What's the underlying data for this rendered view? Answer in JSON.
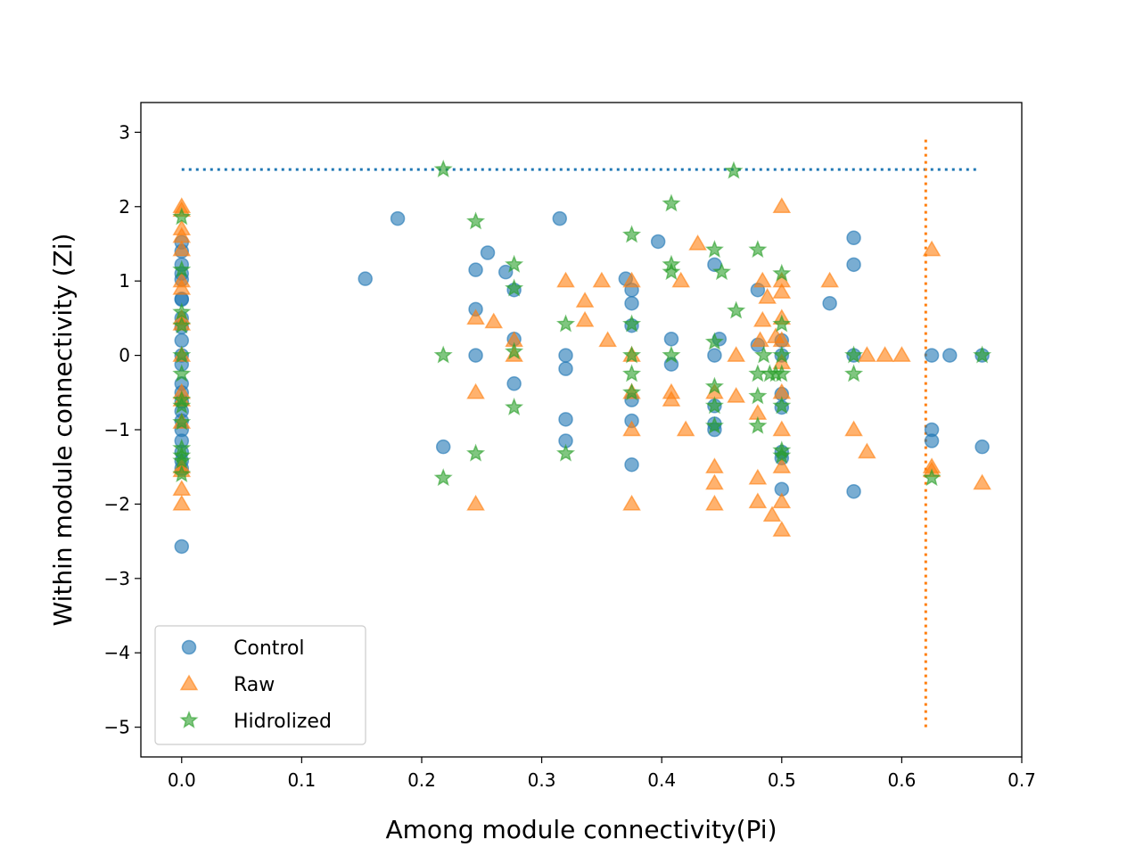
{
  "chart_data": {
    "type": "scatter",
    "title": "",
    "xlabel": "Among module connectivity(Pi)",
    "ylabel": "Within module connectivity (Zi)",
    "xlim": [
      -0.034,
      0.7
    ],
    "ylim": [
      -5.4,
      3.4
    ],
    "xticks": [
      0.0,
      0.1,
      0.2,
      0.3,
      0.4,
      0.5,
      0.6,
      0.7
    ],
    "xtick_labels": [
      "0.0",
      "0.1",
      "0.2",
      "0.3",
      "0.4",
      "0.5",
      "0.6",
      "0.7"
    ],
    "yticks": [
      3,
      2,
      1,
      0,
      -1,
      -2,
      -3,
      -4,
      -5
    ],
    "ytick_labels": [
      "3",
      "2",
      "1",
      "0",
      "−1",
      "−2",
      "−3",
      "−4",
      "−5"
    ],
    "grid": false,
    "legend_position": "lower-left",
    "reference_lines": [
      {
        "orientation": "horizontal",
        "value": 2.5,
        "from": 0.0,
        "to": 0.664,
        "color": "#1f77b4",
        "style": "dotted"
      },
      {
        "orientation": "vertical",
        "value": 0.62,
        "from": -5.0,
        "to": 2.95,
        "color": "#ff7f0e",
        "style": "dotted"
      }
    ],
    "series": [
      {
        "name": "Control",
        "marker": "circle",
        "color": "#1f77b4",
        "points": [
          [
            0,
            1.52
          ],
          [
            0,
            1.4
          ],
          [
            0,
            1.22
          ],
          [
            0,
            1.1
          ],
          [
            0,
            1.02
          ],
          [
            0,
            0.76
          ],
          [
            0,
            0.75
          ],
          [
            0,
            0.5
          ],
          [
            0,
            0.38
          ],
          [
            0,
            0.2
          ],
          [
            0,
            0.0
          ],
          [
            0,
            -0.12
          ],
          [
            0,
            -0.38
          ],
          [
            0,
            -0.5
          ],
          [
            0,
            -0.62
          ],
          [
            0,
            -0.75
          ],
          [
            0,
            -0.88
          ],
          [
            0,
            -1.0
          ],
          [
            0,
            -1.15
          ],
          [
            0,
            -1.3
          ],
          [
            0,
            -1.42
          ],
          [
            0,
            -1.52
          ],
          [
            0,
            -2.57
          ],
          [
            0.153,
            1.03
          ],
          [
            0.18,
            1.84
          ],
          [
            0.218,
            -1.23
          ],
          [
            0.245,
            1.15
          ],
          [
            0.245,
            0.62
          ],
          [
            0.245,
            0.0
          ],
          [
            0.255,
            1.38
          ],
          [
            0.27,
            1.12
          ],
          [
            0.277,
            0.88
          ],
          [
            0.277,
            0.22
          ],
          [
            0.277,
            -0.38
          ],
          [
            0.315,
            1.84
          ],
          [
            0.32,
            0.0
          ],
          [
            0.32,
            -0.18
          ],
          [
            0.32,
            -0.86
          ],
          [
            0.32,
            -1.15
          ],
          [
            0.37,
            1.03
          ],
          [
            0.375,
            0.88
          ],
          [
            0.375,
            0.7
          ],
          [
            0.375,
            0.4
          ],
          [
            0.375,
            -0.6
          ],
          [
            0.375,
            -0.88
          ],
          [
            0.375,
            -1.47
          ],
          [
            0.397,
            1.53
          ],
          [
            0.408,
            0.22
          ],
          [
            0.408,
            -0.12
          ],
          [
            0.444,
            1.22
          ],
          [
            0.444,
            0.0
          ],
          [
            0.444,
            -0.68
          ],
          [
            0.444,
            -0.92
          ],
          [
            0.444,
            -1.0
          ],
          [
            0.448,
            0.22
          ],
          [
            0.48,
            0.88
          ],
          [
            0.48,
            0.14
          ],
          [
            0.5,
            0.2
          ],
          [
            0.5,
            0.0
          ],
          [
            0.5,
            -0.52
          ],
          [
            0.5,
            -0.7
          ],
          [
            0.5,
            -1.3
          ],
          [
            0.5,
            -1.38
          ],
          [
            0.5,
            -1.8
          ],
          [
            0.54,
            0.7
          ],
          [
            0.56,
            1.58
          ],
          [
            0.56,
            1.22
          ],
          [
            0.56,
            0.0
          ],
          [
            0.56,
            -1.83
          ],
          [
            0.625,
            0.0
          ],
          [
            0.625,
            -1.0
          ],
          [
            0.625,
            -1.15
          ],
          [
            0.64,
            0.0
          ],
          [
            0.667,
            0.0
          ],
          [
            0.667,
            -1.23
          ]
        ]
      },
      {
        "name": "Raw",
        "marker": "triangle",
        "color": "#ff7f0e",
        "points": [
          [
            0,
            2.0
          ],
          [
            0,
            1.95
          ],
          [
            0,
            1.7
          ],
          [
            0,
            1.6
          ],
          [
            0,
            1.42
          ],
          [
            0,
            1.0
          ],
          [
            0,
            0.9
          ],
          [
            0,
            0.5
          ],
          [
            0,
            0.42
          ],
          [
            0,
            0.0
          ],
          [
            0,
            -0.5
          ],
          [
            0,
            -0.6
          ],
          [
            0,
            -0.9
          ],
          [
            0,
            -1.5
          ],
          [
            0,
            -1.55
          ],
          [
            0,
            -1.8
          ],
          [
            0,
            -2.0
          ],
          [
            0.245,
            0.5
          ],
          [
            0.245,
            -0.5
          ],
          [
            0.245,
            -2.0
          ],
          [
            0.26,
            0.45
          ],
          [
            0.277,
            0.2
          ],
          [
            0.277,
            0.0
          ],
          [
            0.32,
            1.0
          ],
          [
            0.336,
            0.73
          ],
          [
            0.336,
            0.47
          ],
          [
            0.35,
            1.0
          ],
          [
            0.355,
            0.2
          ],
          [
            0.375,
            1.0
          ],
          [
            0.375,
            0.0
          ],
          [
            0.375,
            -0.5
          ],
          [
            0.375,
            -1.0
          ],
          [
            0.375,
            -2.0
          ],
          [
            0.408,
            -0.5
          ],
          [
            0.408,
            -0.6
          ],
          [
            0.416,
            1.0
          ],
          [
            0.42,
            -1.0
          ],
          [
            0.43,
            1.5
          ],
          [
            0.444,
            -0.5
          ],
          [
            0.444,
            -1.5
          ],
          [
            0.444,
            -1.72
          ],
          [
            0.444,
            -2.0
          ],
          [
            0.462,
            0.0
          ],
          [
            0.462,
            -0.55
          ],
          [
            0.48,
            -0.78
          ],
          [
            0.48,
            -1.65
          ],
          [
            0.48,
            -1.97
          ],
          [
            0.482,
            0.2
          ],
          [
            0.484,
            1.0
          ],
          [
            0.484,
            0.47
          ],
          [
            0.488,
            0.78
          ],
          [
            0.492,
            -2.15
          ],
          [
            0.495,
            0.25
          ],
          [
            0.5,
            2.0
          ],
          [
            0.5,
            1.0
          ],
          [
            0.5,
            0.85
          ],
          [
            0.5,
            0.5
          ],
          [
            0.5,
            0.2
          ],
          [
            0.5,
            -0.1
          ],
          [
            0.5,
            -0.5
          ],
          [
            0.5,
            -1.0
          ],
          [
            0.5,
            -1.5
          ],
          [
            0.5,
            -1.97
          ],
          [
            0.5,
            -2.35
          ],
          [
            0.54,
            1.0
          ],
          [
            0.56,
            -1.0
          ],
          [
            0.571,
            0.0
          ],
          [
            0.571,
            -1.3
          ],
          [
            0.586,
            0.0
          ],
          [
            0.6,
            0.0
          ],
          [
            0.625,
            1.42
          ],
          [
            0.625,
            -1.5
          ],
          [
            0.625,
            -1.55
          ],
          [
            0.667,
            -1.72
          ]
        ]
      },
      {
        "name": "Hidrolized",
        "marker": "star",
        "color": "#2ca02c",
        "points": [
          [
            0,
            1.86
          ],
          [
            0,
            1.15
          ],
          [
            0,
            0.58
          ],
          [
            0,
            0.4
          ],
          [
            0,
            0.0
          ],
          [
            0,
            -0.25
          ],
          [
            0,
            -0.6
          ],
          [
            0,
            -0.68
          ],
          [
            0,
            -0.9
          ],
          [
            0,
            -1.25
          ],
          [
            0,
            -1.35
          ],
          [
            0,
            -1.42
          ],
          [
            0,
            -1.6
          ],
          [
            0.218,
            2.5
          ],
          [
            0.218,
            0.0
          ],
          [
            0.218,
            -1.65
          ],
          [
            0.245,
            1.8
          ],
          [
            0.245,
            -1.32
          ],
          [
            0.277,
            1.22
          ],
          [
            0.277,
            0.9
          ],
          [
            0.277,
            0.05
          ],
          [
            0.277,
            -0.7
          ],
          [
            0.32,
            0.42
          ],
          [
            0.32,
            -1.32
          ],
          [
            0.375,
            1.62
          ],
          [
            0.375,
            0.42
          ],
          [
            0.375,
            0.0
          ],
          [
            0.375,
            -0.25
          ],
          [
            0.375,
            -0.5
          ],
          [
            0.408,
            2.04
          ],
          [
            0.408,
            1.22
          ],
          [
            0.408,
            1.12
          ],
          [
            0.408,
            0.0
          ],
          [
            0.444,
            1.42
          ],
          [
            0.444,
            0.18
          ],
          [
            0.444,
            -0.42
          ],
          [
            0.444,
            -0.68
          ],
          [
            0.444,
            -0.95
          ],
          [
            0.45,
            1.12
          ],
          [
            0.46,
            2.48
          ],
          [
            0.462,
            0.6
          ],
          [
            0.48,
            1.42
          ],
          [
            0.48,
            -0.25
          ],
          [
            0.48,
            -0.55
          ],
          [
            0.48,
            -0.95
          ],
          [
            0.485,
            0.0
          ],
          [
            0.49,
            -0.25
          ],
          [
            0.495,
            -0.25
          ],
          [
            0.5,
            1.1
          ],
          [
            0.5,
            0.42
          ],
          [
            0.5,
            0.0
          ],
          [
            0.5,
            -0.25
          ],
          [
            0.5,
            -0.68
          ],
          [
            0.5,
            -1.28
          ],
          [
            0.5,
            -1.35
          ],
          [
            0.56,
            0.0
          ],
          [
            0.56,
            -0.25
          ],
          [
            0.625,
            -1.65
          ],
          [
            0.667,
            0.0
          ]
        ]
      }
    ]
  }
}
